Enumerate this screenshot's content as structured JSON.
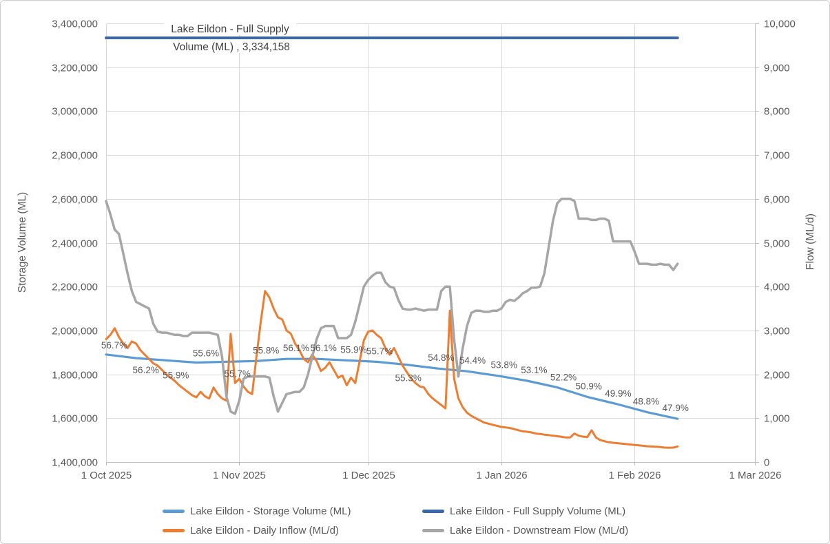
{
  "chart_data": {
    "type": "line",
    "annotation": {
      "line1": "Lake Eildon - Full Supply",
      "line2": "Volume (ML) ,  3,334,158",
      "value": 3334158
    },
    "left_axis": {
      "label": "Storage Volume (ML)",
      "min": 1400000,
      "max": 3400000,
      "tick_step": 200000
    },
    "right_axis": {
      "label": "Flow (ML/d)",
      "min": 0,
      "max": 10000,
      "tick_step": 1000
    },
    "x_axis": {
      "labels": [
        "1 Oct 2025",
        "1 Nov 2025",
        "1 Dec 2025",
        "1 Jan 2026",
        "1 Feb 2026",
        "1 Mar 2026"
      ],
      "month_start_days": [
        0,
        31,
        61,
        92,
        123,
        151
      ],
      "total_days": 151,
      "grid": true
    },
    "colors": {
      "storage": "#5B9BD5",
      "full_supply": "#3A66B0",
      "inflow": "#ED7D31",
      "downstream": "#A6A6A6",
      "gridline": "#D9D9D9",
      "axis_line": "#BFBFBF"
    },
    "series": [
      {
        "name": "Lake Eildon - Storage Volume (ML)",
        "axis": "left",
        "color": "#5B9BD5",
        "width": 3.2,
        "days": [
          0,
          7,
          14,
          21,
          28,
          35,
          42,
          49,
          56,
          63,
          70,
          77,
          84,
          91,
          98,
          105,
          112,
          119,
          126,
          133
        ],
        "values": [
          1890468,
          1873797,
          1863794,
          1853792,
          1857126,
          1860460,
          1870463,
          1870463,
          1863794,
          1857126,
          1843789,
          1827119,
          1813782,
          1793777,
          1770438,
          1740430,
          1697086,
          1663745,
          1627069,
          1597062
        ]
      },
      {
        "name": "Lake Eildon - Full Supply Volume (ML)",
        "axis": "left",
        "color": "#3A66B0",
        "width": 4,
        "days": [
          0,
          133
        ],
        "values": [
          3334158,
          3334158
        ]
      },
      {
        "name": "Lake Eildon - Daily Inflow (ML/d)",
        "axis": "right",
        "color": "#ED7D31",
        "width": 3,
        "values_daily": [
          2800,
          2900,
          3050,
          2850,
          2700,
          2600,
          2750,
          2700,
          2550,
          2450,
          2350,
          2250,
          2200,
          2100,
          2000,
          1925,
          1850,
          1750,
          1675,
          1600,
          1525,
          1475,
          1600,
          1500,
          1450,
          1700,
          1550,
          1450,
          1400,
          2925,
          1800,
          1900,
          1725,
          1600,
          1550,
          2400,
          3200,
          3900,
          3750,
          3500,
          3300,
          3250,
          3000,
          2925,
          2700,
          2550,
          2350,
          2275,
          2450,
          2300,
          2075,
          2150,
          2275,
          2100,
          1925,
          1975,
          1750,
          1925,
          1800,
          2300,
          2775,
          2975,
          3000,
          2900,
          2825,
          2600,
          2450,
          2600,
          2400,
          2200,
          2050,
          1900,
          1800,
          1725,
          1700,
          1550,
          1450,
          1375,
          1300,
          1225,
          3450,
          1900,
          1450,
          1250,
          1125,
          1050,
          1000,
          950,
          900,
          875,
          850,
          825,
          800,
          790,
          775,
          750,
          725,
          700,
          690,
          675,
          650,
          640,
          625,
          615,
          600,
          590,
          575,
          560,
          560,
          650,
          600,
          580,
          570,
          725,
          560,
          500,
          475,
          450,
          440,
          430,
          420,
          410,
          400,
          390,
          380,
          370,
          360,
          355,
          350,
          340,
          330,
          325,
          330,
          355
        ]
      },
      {
        "name": "Lake Eildon - Downstream Flow (ML/d)",
        "axis": "right",
        "color": "#A6A6A6",
        "width": 3.5,
        "values_daily": [
          5950,
          5650,
          5300,
          5200,
          4750,
          4300,
          3900,
          3650,
          3600,
          3550,
          3500,
          3150,
          2975,
          2950,
          2950,
          2925,
          2900,
          2900,
          2875,
          2875,
          2950,
          2950,
          2950,
          2950,
          2950,
          2925,
          2900,
          2400,
          1500,
          1150,
          1100,
          1400,
          1900,
          1950,
          1950,
          1950,
          1950,
          1950,
          1925,
          1500,
          1150,
          1350,
          1550,
          1575,
          1600,
          1600,
          1700,
          2000,
          2400,
          2800,
          3050,
          3100,
          3100,
          3100,
          2825,
          2825,
          2825,
          2900,
          3200,
          3600,
          4000,
          4150,
          4250,
          4315,
          4315,
          4100,
          4000,
          3975,
          3700,
          3500,
          3475,
          3475,
          3500,
          3475,
          3450,
          3475,
          3475,
          3475,
          3900,
          4000,
          4000,
          2800,
          1950,
          2600,
          3100,
          3400,
          3450,
          3450,
          3425,
          3425,
          3450,
          3450,
          3500,
          3650,
          3700,
          3675,
          3750,
          3850,
          3900,
          3975,
          3975,
          4000,
          4300,
          4900,
          5500,
          5900,
          6000,
          6000,
          6000,
          5950,
          5550,
          5550,
          5550,
          5520,
          5520,
          5550,
          5550,
          5500,
          5030,
          5030,
          5030,
          5030,
          5030,
          4800,
          4520,
          4520,
          4520,
          4500,
          4500,
          4520,
          4500,
          4500,
          4380,
          4520
        ]
      }
    ],
    "pct_labels": [
      {
        "text": "56.7%",
        "day": 0,
        "value": 1890468,
        "ox": 12,
        "oy": -9
      },
      {
        "text": "56.2%",
        "day": 7,
        "value": 1873797,
        "ox": 14,
        "oy": 22
      },
      {
        "text": "55.9%",
        "day": 14,
        "value": 1863794,
        "ox": 14,
        "oy": 26
      },
      {
        "text": "55.6%",
        "day": 21,
        "value": 1853792,
        "ox": 14,
        "oy": -9
      },
      {
        "text": "55.7%",
        "day": 28,
        "value": 1857126,
        "ox": 16,
        "oy": 22
      },
      {
        "text": "55.8%",
        "day": 35,
        "value": 1860460,
        "ox": 14,
        "oy": -11
      },
      {
        "text": "56.1%",
        "day": 42,
        "value": 1870463,
        "ox": 14,
        "oy": -11
      },
      {
        "text": "56.1%",
        "day": 49,
        "value": 1870463,
        "ox": 10,
        "oy": -11
      },
      {
        "text": "55.9%",
        "day": 56,
        "value": 1863794,
        "ox": 10,
        "oy": -11
      },
      {
        "text": "55.7%",
        "day": 63,
        "value": 1857126,
        "ox": 4,
        "oy": -11
      },
      {
        "text": "55.3%",
        "day": 70,
        "value": 1843789,
        "ox": 2,
        "oy": 24
      },
      {
        "text": "54.8%",
        "day": 77,
        "value": 1827119,
        "ox": 6,
        "oy": -11
      },
      {
        "text": "54.4%",
        "day": 84,
        "value": 1813782,
        "ox": 8,
        "oy": -11
      },
      {
        "text": "53.8%",
        "day": 91,
        "value": 1793777,
        "ox": 10,
        "oy": -11
      },
      {
        "text": "53.1%",
        "day": 98,
        "value": 1770438,
        "ox": 10,
        "oy": -11
      },
      {
        "text": "52.2%",
        "day": 105,
        "value": 1740430,
        "ox": 9,
        "oy": -10
      },
      {
        "text": "50.9%",
        "day": 112,
        "value": 1697086,
        "ox": 2,
        "oy": -11
      },
      {
        "text": "49.9%",
        "day": 119,
        "value": 1663745,
        "ox": 1,
        "oy": -11
      },
      {
        "text": "48.8%",
        "day": 126,
        "value": 1627069,
        "ox": -2,
        "oy": -11
      },
      {
        "text": "47.9%",
        "day": 133,
        "value": 1597062,
        "ox": -3,
        "oy": -11
      }
    ]
  },
  "legend": {
    "items": [
      {
        "label": "Lake Eildon - Storage Volume (ML)",
        "color": "#5B9BD5"
      },
      {
        "label": "Lake Eildon - Full Supply Volume (ML)",
        "color": "#3A66B0"
      },
      {
        "label": "Lake Eildon - Daily Inflow (ML/d)",
        "color": "#ED7D31"
      },
      {
        "label": "Lake Eildon - Downstream Flow (ML/d)",
        "color": "#A6A6A6"
      }
    ]
  }
}
